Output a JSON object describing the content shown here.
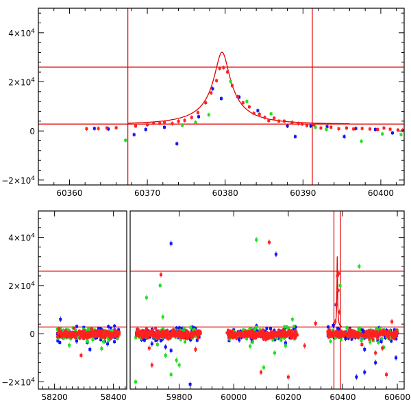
{
  "chart_data": [
    {
      "type": "scatter",
      "panel": "top",
      "title": "",
      "xlabel": "",
      "ylabel": "",
      "xlim": [
        60356,
        60403
      ],
      "ylim": [
        -22000,
        50000
      ],
      "grid": false,
      "xticks": [
        {
          "value": 60360,
          "label": "60360"
        },
        {
          "value": 60370,
          "label": "60370"
        },
        {
          "value": 60380,
          "label": "60380"
        },
        {
          "value": 60390,
          "label": "60390"
        },
        {
          "value": 60400,
          "label": "60400"
        }
      ],
      "yticks": [
        {
          "value": 40000,
          "base": "4×10",
          "exp": "4"
        },
        {
          "value": 20000,
          "base": "2×10",
          "exp": "4"
        },
        {
          "value": 0,
          "base": "0",
          "exp": ""
        },
        {
          "value": -20000,
          "base": "−2×10",
          "exp": "4"
        }
      ],
      "hlines": [
        26000,
        2800
      ],
      "vlines": [
        60367.5,
        60391.2
      ],
      "model_curve": {
        "color": "#e00000",
        "t0": 60379.6,
        "u0": 0.152,
        "tE": 6.5,
        "base": 2800,
        "amp": 5200,
        "x_range": [
          60367.5,
          60396
        ]
      },
      "series": [
        {
          "color": "#ff2020",
          "points": [
            [
              60362.2,
              900
            ],
            [
              60363.7,
              1000
            ],
            [
              60364.8,
              1200
            ],
            [
              60366.0,
              1300
            ],
            [
              60368.5,
              2000
            ],
            [
              60370.0,
              2500
            ],
            [
              60370.8,
              3200
            ],
            [
              60371.6,
              3100
            ],
            [
              60372.2,
              3600
            ],
            [
              60373.2,
              3000
            ],
            [
              60374.0,
              3900
            ],
            [
              60374.8,
              4300
            ],
            [
              60375.7,
              5500
            ],
            [
              60376.5,
              7500
            ],
            [
              60377.5,
              11500
            ],
            [
              60378.2,
              15500
            ],
            [
              60378.9,
              20500
            ],
            [
              60379.3,
              25500
            ],
            [
              60379.8,
              25800
            ],
            [
              60380.3,
              24000
            ],
            [
              60380.9,
              18500
            ],
            [
              60381.6,
              14000
            ],
            [
              60382.3,
              11500
            ],
            [
              60383.1,
              9800
            ],
            [
              60383.7,
              7200
            ],
            [
              60384.4,
              6800
            ],
            [
              60385.1,
              5500
            ],
            [
              60385.6,
              4200
            ],
            [
              60386.3,
              5200
            ],
            [
              60386.9,
              4000
            ],
            [
              60387.6,
              4000
            ],
            [
              60388.6,
              3500
            ],
            [
              60389.4,
              3000
            ],
            [
              60389.9,
              2800
            ],
            [
              60390.5,
              2200
            ],
            [
              60391.4,
              2500
            ],
            [
              60392.3,
              1200
            ],
            [
              60393.6,
              1500
            ],
            [
              60394.6,
              900
            ],
            [
              60395.6,
              1200
            ],
            [
              60396.5,
              800
            ],
            [
              60397.6,
              1000
            ],
            [
              60398.6,
              800
            ],
            [
              60399.6,
              600
            ],
            [
              60400.4,
              1200
            ],
            [
              60401.2,
              700
            ],
            [
              60402.2,
              400
            ],
            [
              60402.8,
              300
            ]
          ]
        },
        {
          "color": "#20e020",
          "points": [
            [
              60367.2,
              -3800
            ],
            [
              60374.5,
              2300
            ],
            [
              60376.2,
              3500
            ],
            [
              60377.9,
              6600
            ],
            [
              60380.7,
              20200
            ],
            [
              60382.8,
              12000
            ],
            [
              60385.9,
              7000
            ],
            [
              60391.6,
              1500
            ],
            [
              60393.0,
              600
            ],
            [
              60397.5,
              -4200
            ],
            [
              60400.2,
              -1200
            ],
            [
              60402.6,
              -1500
            ]
          ]
        },
        {
          "color": "#1010ff",
          "points": [
            [
              60363.2,
              1000
            ],
            [
              60365.0,
              800
            ],
            [
              60368.3,
              -1500
            ],
            [
              60369.8,
              600
            ],
            [
              60372.2,
              1500
            ],
            [
              60373.8,
              -5200
            ],
            [
              60376.6,
              5800
            ],
            [
              60378.4,
              17200
            ],
            [
              60379.5,
              13200
            ],
            [
              60381.8,
              13800
            ],
            [
              60384.2,
              8300
            ],
            [
              60388.0,
              2000
            ],
            [
              60389.0,
              -2300
            ],
            [
              60391.0,
              2000
            ],
            [
              60393.1,
              1800
            ],
            [
              60395.3,
              -2300
            ],
            [
              60396.8,
              1000
            ],
            [
              60399.3,
              600
            ],
            [
              60401.5,
              -800
            ]
          ]
        }
      ]
    },
    {
      "type": "scatter",
      "panel": "bottom",
      "title": "",
      "xlabel": "",
      "ylabel": "",
      "x_axis_break": {
        "segments": [
          {
            "xlim": [
              58145,
              58445
            ]
          },
          {
            "xlim": [
              59620,
              60625
            ]
          }
        ],
        "gap_at_season": 59620
      },
      "ylim": [
        -23000,
        51000
      ],
      "grid": false,
      "xticks": [
        {
          "value": 58200,
          "label": "58200"
        },
        {
          "value": 58400,
          "label": "58400"
        },
        {
          "value": 59800,
          "label": "59800"
        },
        {
          "value": 60000,
          "label": "60000"
        },
        {
          "value": 60200,
          "label": "60200"
        },
        {
          "value": 60400,
          "label": "60400"
        },
        {
          "value": 60600,
          "label": "60600"
        }
      ],
      "yticks": [
        {
          "value": 40000,
          "base": "4×10",
          "exp": "4"
        },
        {
          "value": 20000,
          "base": "2×10",
          "exp": "4"
        },
        {
          "value": 0,
          "base": "0",
          "exp": ""
        },
        {
          "value": -20000,
          "base": "−2×10",
          "exp": "4"
        }
      ],
      "hlines": [
        26000,
        2800
      ],
      "vlines": [
        60367.5,
        60391.2
      ],
      "model_curve": {
        "color": "#e00000",
        "t0": 60379.6,
        "u0": 0.152,
        "tE": 6.5,
        "base": 2800,
        "amp": 5200,
        "x_range": [
          60367.5,
          60396
        ]
      },
      "bands": [
        {
          "x_range": [
            58210,
            58420
          ],
          "color": "#ff2020",
          "scatter": 1500
        },
        {
          "x_range": [
            59640,
            59880
          ],
          "color": "#ff2020",
          "scatter": 1500
        },
        {
          "x_range": [
            59975,
            60235
          ],
          "color": "#ff2020",
          "scatter": 1500
        },
        {
          "x_range": [
            60345,
            60600
          ],
          "color": "#ff2020",
          "scatter": 1500
        }
      ],
      "series": [
        {
          "color": "#ff2020",
          "points": [
            [
              59733,
              24500
            ],
            [
              60130,
              38000
            ],
            [
              58290,
              -9000
            ],
            [
              59690,
              -6000
            ],
            [
              59700,
              -13000
            ],
            [
              59860,
              -6500
            ],
            [
              60100,
              -16000
            ],
            [
              60200,
              -18000
            ],
            [
              60560,
              -17000
            ],
            [
              60520,
              -8000
            ],
            [
              60545,
              -6000
            ],
            [
              60580,
              5000
            ],
            [
              60470,
              -4500
            ],
            [
              60300,
              4300
            ],
            [
              60260,
              -5000
            ],
            [
              60385,
              25000
            ],
            [
              60380,
              24000
            ],
            [
              60383,
              18000
            ],
            [
              60377,
              12000
            ],
            [
              60388,
              9000
            ],
            [
              60372,
              5000
            ]
          ]
        },
        {
          "color": "#20e020",
          "points": [
            [
              60083,
              39000
            ],
            [
              59640,
              -20000
            ],
            [
              59680,
              15000
            ],
            [
              59730,
              20000
            ],
            [
              59740,
              7000
            ],
            [
              59770,
              -17000
            ],
            [
              59750,
              -9000
            ],
            [
              59790,
              -11000
            ],
            [
              59800,
              -13000
            ],
            [
              59720,
              -4500
            ],
            [
              60060,
              -5200
            ],
            [
              60110,
              -14000
            ],
            [
              60150,
              -8000
            ],
            [
              60190,
              -5000
            ],
            [
              60215,
              6000
            ],
            [
              60460,
              28000
            ],
            [
              60390,
              20000
            ],
            [
              60500,
              -3500
            ],
            [
              60550,
              -5600
            ],
            [
              58250,
              -4800
            ],
            [
              58330,
              -2500
            ],
            [
              58360,
              -6200
            ]
          ]
        },
        {
          "color": "#1010ff",
          "points": [
            [
              59770,
              37500
            ],
            [
              60155,
              33000
            ],
            [
              58220,
              6000
            ],
            [
              58275,
              -3000
            ],
            [
              58320,
              -6500
            ],
            [
              58380,
              -4200
            ],
            [
              59700,
              -4200
            ],
            [
              59750,
              -5500
            ],
            [
              59840,
              -21000
            ],
            [
              59770,
              -7000
            ],
            [
              60020,
              -2600
            ],
            [
              60190,
              -3800
            ],
            [
              60475,
              1000
            ],
            [
              60480,
              -6500
            ],
            [
              60520,
              -12000
            ],
            [
              60595,
              -10000
            ],
            [
              60410,
              -2000
            ],
            [
              60450,
              -18000
            ],
            [
              60480,
              -16000
            ],
            [
              60375,
              12000
            ],
            [
              60365,
              3500
            ]
          ]
        }
      ]
    }
  ]
}
